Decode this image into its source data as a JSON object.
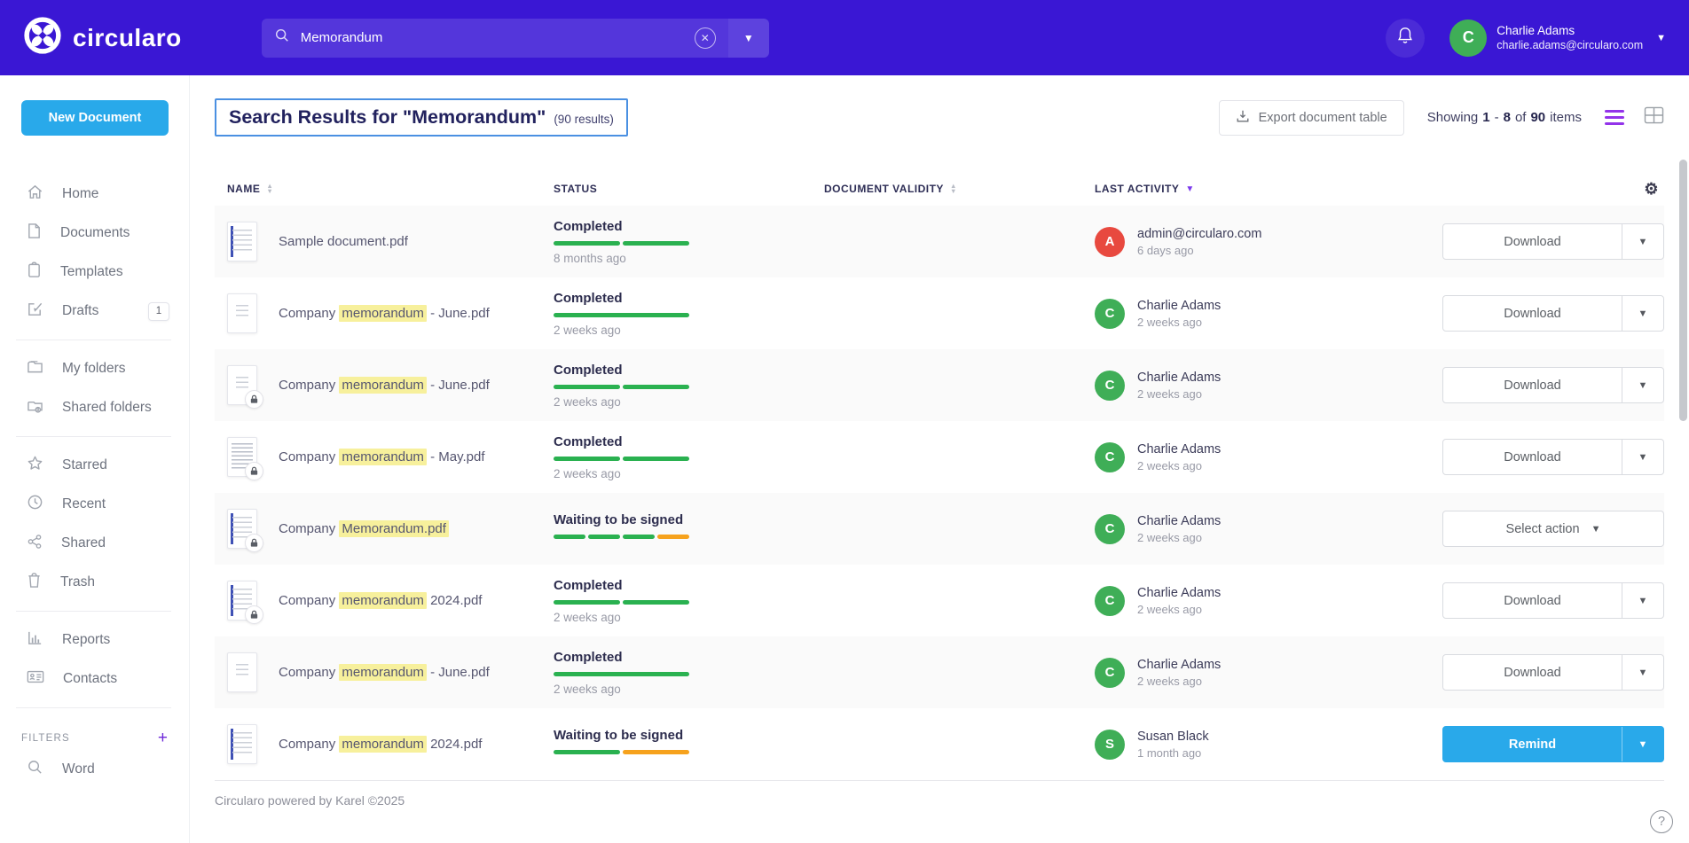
{
  "colors": {
    "navbar": "#3a17d4",
    "accent_blue": "#29a9ea",
    "progress_green": "#2ab150",
    "progress_orange": "#f6a21d",
    "highlight_yellow": "#f7f09c",
    "sort_active_purple": "#7c3aed",
    "avatar_red": "#e8493f",
    "avatar_green": "#3fae57"
  },
  "topbar": {
    "logo_text": "circularo",
    "search": {
      "value": "Memorandum"
    },
    "user": {
      "name": "Charlie Adams",
      "email": "charlie.adams@circularo.com",
      "avatar_initial": "C",
      "avatar_color": "#3fae57"
    }
  },
  "sidebar": {
    "new_document_label": "New Document",
    "items": [
      {
        "label": "Home"
      },
      {
        "label": "Documents"
      },
      {
        "label": "Templates"
      },
      {
        "label": "Drafts",
        "badge": "1"
      },
      {
        "label": "My folders"
      },
      {
        "label": "Shared folders"
      },
      {
        "label": "Starred"
      },
      {
        "label": "Recent"
      },
      {
        "label": "Shared"
      },
      {
        "label": "Trash"
      },
      {
        "label": "Reports"
      },
      {
        "label": "Contacts"
      }
    ],
    "filters_label": "FILTERS",
    "filters_add": "+",
    "filter_items": [
      {
        "label": "Word"
      }
    ]
  },
  "header": {
    "title": "Search Results for \"Memorandum\"",
    "results_note": "(90 results)",
    "export_label": "Export document table",
    "showing": {
      "w1": "Showing",
      "n1": "1",
      "dash": "-",
      "n2": "8",
      "of": "of",
      "n3": "90",
      "w2": "items"
    }
  },
  "table": {
    "columns": [
      {
        "label": "NAME"
      },
      {
        "label": "STATUS"
      },
      {
        "label": "DOCUMENT VALIDITY"
      },
      {
        "label": "LAST ACTIVITY"
      }
    ],
    "rows": [
      {
        "name_pre": "Sample document.pdf",
        "name_hl": "",
        "name_post": "",
        "thumb": "striped",
        "locked": false,
        "status": "Completed",
        "segments": [
          "green",
          "green"
        ],
        "status_time": "8 months ago",
        "actor": {
          "initial": "A",
          "color": "#e8493f",
          "name": "admin@circularo.com",
          "time": "6 days ago"
        },
        "action": {
          "type": "download",
          "label": "Download"
        }
      },
      {
        "name_pre": "Company ",
        "name_hl": "memorandum",
        "name_post": " - June.pdf",
        "thumb": "plain",
        "locked": false,
        "status": "Completed",
        "segments": [
          "green"
        ],
        "status_time": "2 weeks ago",
        "actor": {
          "initial": "C",
          "color": "#3fae57",
          "name": "Charlie Adams",
          "time": "2 weeks ago"
        },
        "action": {
          "type": "download",
          "label": "Download"
        }
      },
      {
        "name_pre": "Company ",
        "name_hl": "memorandum",
        "name_post": " - June.pdf",
        "thumb": "plain",
        "locked": true,
        "status": "Completed",
        "segments": [
          "green",
          "green"
        ],
        "status_time": "2 weeks ago",
        "actor": {
          "initial": "C",
          "color": "#3fae57",
          "name": "Charlie Adams",
          "time": "2 weeks ago"
        },
        "action": {
          "type": "download",
          "label": "Download"
        }
      },
      {
        "name_pre": "Company ",
        "name_hl": "memorandum",
        "name_post": " - May.pdf",
        "thumb": "dense",
        "locked": true,
        "status": "Completed",
        "segments": [
          "green",
          "green"
        ],
        "status_time": "2 weeks ago",
        "actor": {
          "initial": "C",
          "color": "#3fae57",
          "name": "Charlie Adams",
          "time": "2 weeks ago"
        },
        "action": {
          "type": "download",
          "label": "Download"
        }
      },
      {
        "name_pre": "Company ",
        "name_hl": "Memorandum.pdf",
        "name_post": "",
        "thumb": "striped",
        "locked": true,
        "status": "Waiting to be signed",
        "segments": [
          "green",
          "green",
          "green",
          "orange"
        ],
        "status_time": "",
        "actor": {
          "initial": "C",
          "color": "#3fae57",
          "name": "Charlie Adams",
          "time": "2 weeks ago"
        },
        "action": {
          "type": "select",
          "label": "Select action"
        }
      },
      {
        "name_pre": "Company ",
        "name_hl": "memorandum",
        "name_post": " 2024.pdf",
        "thumb": "striped",
        "locked": true,
        "status": "Completed",
        "segments": [
          "green",
          "green"
        ],
        "status_time": "2 weeks ago",
        "actor": {
          "initial": "C",
          "color": "#3fae57",
          "name": "Charlie Adams",
          "time": "2 weeks ago"
        },
        "action": {
          "type": "download",
          "label": "Download"
        }
      },
      {
        "name_pre": "Company ",
        "name_hl": "memorandum",
        "name_post": " - June.pdf",
        "thumb": "plain",
        "locked": false,
        "status": "Completed",
        "segments": [
          "green"
        ],
        "status_time": "2 weeks ago",
        "actor": {
          "initial": "C",
          "color": "#3fae57",
          "name": "Charlie Adams",
          "time": "2 weeks ago"
        },
        "action": {
          "type": "download",
          "label": "Download"
        }
      },
      {
        "name_pre": "Company ",
        "name_hl": "memorandum",
        "name_post": " 2024.pdf",
        "thumb": "striped",
        "locked": false,
        "status": "Waiting to be signed",
        "segments": [
          "green",
          "orange"
        ],
        "status_time": "",
        "actor": {
          "initial": "S",
          "color": "#3fae57",
          "name": "Susan Black",
          "time": "1 month ago"
        },
        "action": {
          "type": "remind",
          "label": "Remind"
        }
      }
    ]
  },
  "footer": {
    "text": "Circularo powered by Karel ©2025",
    "help_label": "?"
  }
}
